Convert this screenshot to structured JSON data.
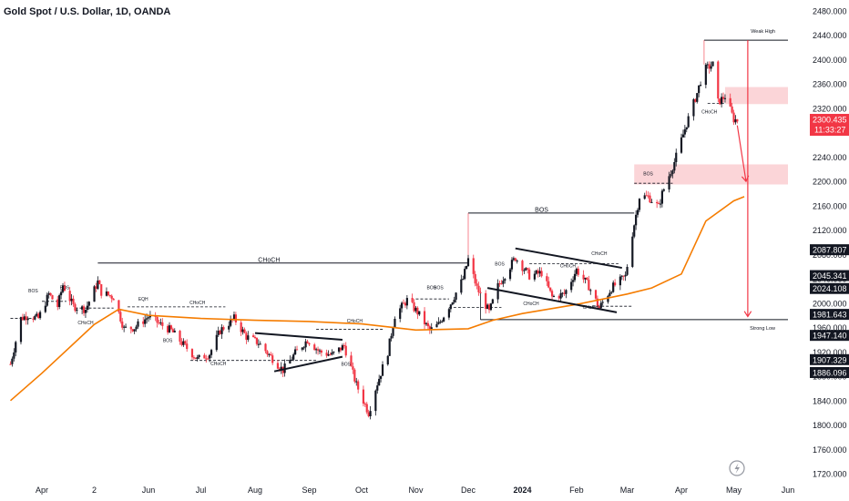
{
  "title": "Gold Spot / U.S. Dollar, 1D, OANDA",
  "colors": {
    "up": "#131722",
    "down": "#f23645",
    "ma": "#f57c00",
    "zone": "#fbd5d8",
    "arrow": "#f23645",
    "line": "#131722",
    "grid": "#ffffff",
    "badge_dark": "#131722",
    "badge_red": "#f23645"
  },
  "icon": "lightning-icon",
  "chart_data": {
    "type": "candlestick",
    "symbol": "Gold Spot / U.S. Dollar",
    "interval": "1D",
    "source": "OANDA",
    "ylim": [
      1720,
      2480
    ],
    "y_ticks": [
      1720,
      1760,
      1800,
      1840,
      1880,
      1920,
      1960,
      2000,
      2040,
      2080,
      2120,
      2160,
      2200,
      2240,
      2280,
      2320,
      2360,
      2400,
      2440,
      2480
    ],
    "y_tick_labels": [
      "1720.000",
      "1760.000",
      "1800.000",
      "1840.000",
      "1880.000",
      "1920.000",
      "1960.000",
      "2000.000",
      "2040.000",
      "2080.000",
      "2120.000",
      "2160.000",
      "2200.000",
      "2240.000",
      "2280.000",
      "2320.000",
      "2360.000",
      "2400.000",
      "2440.000",
      "2480.000"
    ],
    "x_ticks": [
      {
        "label": "Apr",
        "date": "2023-04-01"
      },
      {
        "label": "2",
        "date": "2023-05-01"
      },
      {
        "label": "Jun",
        "date": "2023-06-01"
      },
      {
        "label": "Jul",
        "date": "2023-07-01"
      },
      {
        "label": "Aug",
        "date": "2023-08-01"
      },
      {
        "label": "Sep",
        "date": "2023-09-01"
      },
      {
        "label": "Oct",
        "date": "2023-10-01"
      },
      {
        "label": "Nov",
        "date": "2023-11-01"
      },
      {
        "label": "Dec",
        "date": "2023-12-01"
      },
      {
        "label": "2024",
        "date": "2024-01-01"
      },
      {
        "label": "Feb",
        "date": "2024-02-01"
      },
      {
        "label": "Mar",
        "date": "2024-03-01"
      },
      {
        "label": "Apr",
        "date": "2024-04-01"
      },
      {
        "label": "May",
        "date": "2024-05-01"
      },
      {
        "label": "Jun",
        "date": "2024-06-01"
      }
    ],
    "close_path": [
      [
        "2023-03-14",
        1900
      ],
      [
        "2023-03-20",
        1975
      ],
      [
        "2023-03-24",
        1980
      ],
      [
        "2023-03-30",
        1975
      ],
      [
        "2023-04-05",
        2015
      ],
      [
        "2023-04-10",
        1995
      ],
      [
        "2023-04-13",
        2030
      ],
      [
        "2023-04-19",
        1995
      ],
      [
        "2023-04-26",
        1990
      ],
      [
        "2023-05-03",
        2035
      ],
      [
        "2023-05-05",
        2018
      ],
      [
        "2023-05-12",
        2010
      ],
      [
        "2023-05-18",
        1958
      ],
      [
        "2023-05-24",
        1960
      ],
      [
        "2023-06-01",
        1978
      ],
      [
        "2023-06-08",
        1965
      ],
      [
        "2023-06-14",
        1955
      ],
      [
        "2023-06-20",
        1935
      ],
      [
        "2023-06-29",
        1908
      ],
      [
        "2023-07-06",
        1917
      ],
      [
        "2023-07-12",
        1955
      ],
      [
        "2023-07-20",
        1975
      ],
      [
        "2023-07-27",
        1945
      ],
      [
        "2023-08-03",
        1935
      ],
      [
        "2023-08-10",
        1912
      ],
      [
        "2023-08-17",
        1890
      ],
      [
        "2023-08-24",
        1918
      ],
      [
        "2023-08-31",
        1940
      ],
      [
        "2023-09-07",
        1920
      ],
      [
        "2023-09-14",
        1915
      ],
      [
        "2023-09-21",
        1930
      ],
      [
        "2023-09-28",
        1866
      ],
      [
        "2023-10-05",
        1820
      ],
      [
        "2023-10-09",
        1860
      ],
      [
        "2023-10-16",
        1920
      ],
      [
        "2023-10-20",
        1980
      ],
      [
        "2023-10-27",
        2005
      ],
      [
        "2023-11-02",
        1985
      ],
      [
        "2023-11-09",
        1955
      ],
      [
        "2023-11-14",
        1965
      ],
      [
        "2023-11-21",
        2000
      ],
      [
        "2023-11-28",
        2040
      ],
      [
        "2023-12-01",
        2072
      ],
      [
        "2023-12-06",
        2025
      ],
      [
        "2023-12-13",
        1985
      ],
      [
        "2023-12-18",
        2028
      ],
      [
        "2023-12-28",
        2075
      ],
      [
        "2024-01-05",
        2045
      ],
      [
        "2024-01-12",
        2050
      ],
      [
        "2024-01-18",
        2010
      ],
      [
        "2024-01-25",
        2015
      ],
      [
        "2024-02-01",
        2055
      ],
      [
        "2024-02-08",
        2028
      ],
      [
        "2024-02-14",
        1992
      ],
      [
        "2024-02-21",
        2025
      ],
      [
        "2024-02-29",
        2044
      ],
      [
        "2024-03-04",
        2115
      ],
      [
        "2024-03-08",
        2175
      ],
      [
        "2024-03-13",
        2175
      ],
      [
        "2024-03-19",
        2158
      ],
      [
        "2024-03-21",
        2180
      ],
      [
        "2024-03-28",
        2232
      ],
      [
        "2024-04-04",
        2295
      ],
      [
        "2024-04-10",
        2345
      ],
      [
        "2024-04-12",
        2365
      ],
      [
        "2024-04-15",
        2385
      ],
      [
        "2024-04-19",
        2392
      ],
      [
        "2024-04-22",
        2330
      ],
      [
        "2024-04-26",
        2340
      ],
      [
        "2024-05-01",
        2302
      ],
      [
        "2024-05-03",
        2300.435
      ]
    ],
    "moving_average": [
      [
        "2023-03-14",
        1840
      ],
      [
        "2023-04-01",
        1885
      ],
      [
        "2023-05-01",
        1965
      ],
      [
        "2023-05-15",
        1990
      ],
      [
        "2023-06-01",
        1980
      ],
      [
        "2023-07-01",
        1975
      ],
      [
        "2023-08-01",
        1972
      ],
      [
        "2023-09-01",
        1970
      ],
      [
        "2023-10-01",
        1966
      ],
      [
        "2023-11-01",
        1956
      ],
      [
        "2023-12-01",
        1958
      ],
      [
        "2023-12-15",
        1972
      ],
      [
        "2024-01-01",
        1983
      ],
      [
        "2024-02-01",
        1998
      ],
      [
        "2024-03-01",
        2015
      ],
      [
        "2024-03-15",
        2025
      ],
      [
        "2024-04-01",
        2048
      ],
      [
        "2024-04-15",
        2135
      ],
      [
        "2024-05-01",
        2168
      ],
      [
        "2024-05-07",
        2175
      ]
    ],
    "levels": [
      {
        "label": "Weak High",
        "value": 2432,
        "from": "2024-04-14",
        "to": "2024-06-01"
      },
      {
        "label": "Strong Low",
        "value": 1973,
        "from": "2023-12-08",
        "to": "2024-06-01"
      },
      {
        "label": "BOS",
        "value": 2148,
        "from": "2023-12-01",
        "to": "2024-03-05"
      },
      {
        "label": "CHoCH",
        "value": 2066,
        "from": "2023-05-03",
        "to": "2023-12-01"
      }
    ],
    "zones": [
      {
        "from": "2024-04-26",
        "to": "2024-06-01",
        "low": 2327,
        "high": 2355
      },
      {
        "from": "2024-03-05",
        "to": "2024-06-01",
        "low": 2195,
        "high": 2228
      }
    ],
    "trendlines": [
      {
        "from": [
          "2023-08-12",
          1888
        ],
        "to": [
          "2023-09-20",
          1912
        ]
      },
      {
        "from": [
          "2023-08-01",
          1951
        ],
        "to": [
          "2023-09-20",
          1940
        ]
      },
      {
        "from": [
          "2023-12-28",
          2090
        ],
        "to": [
          "2024-02-27",
          2058
        ]
      },
      {
        "from": [
          "2023-12-12",
          2025
        ],
        "to": [
          "2024-02-24",
          1985
        ]
      }
    ],
    "markers": [
      {
        "label": "BOS",
        "date": "2023-03-27",
        "value": 2018
      },
      {
        "label": "BOS",
        "date": "2023-04-14",
        "value": 2023
      },
      {
        "label": "EQH",
        "date": "2023-05-29",
        "value": 2004
      },
      {
        "label": "CHoCH",
        "date": "2023-04-26",
        "value": 1965
      },
      {
        "label": "CHoCH",
        "date": "2023-06-29",
        "value": 1998
      },
      {
        "label": "BOS",
        "date": "2023-06-12",
        "value": 1936
      },
      {
        "label": "CHoCH",
        "date": "2023-07-11",
        "value": 1898
      },
      {
        "label": "CHoCH",
        "date": "2023-09-27",
        "value": 1968
      },
      {
        "label": "BOS",
        "date": "2023-09-22",
        "value": 1897
      },
      {
        "label": "BOS",
        "date": "2023-11-10",
        "value": 2023
      },
      {
        "label": "BOS",
        "date": "2023-11-14",
        "value": 2023
      },
      {
        "label": "BOS",
        "date": "2023-12-19",
        "value": 2062
      },
      {
        "label": "CHoCH",
        "date": "2024-01-06",
        "value": 1997
      },
      {
        "label": "CHoCH",
        "date": "2024-01-27",
        "value": 2059
      },
      {
        "label": "CHoCH",
        "date": "2024-02-14",
        "value": 2079
      },
      {
        "label": "CHoCH",
        "date": "2024-02-09",
        "value": 1991
      },
      {
        "label": "BOS",
        "date": "2024-03-13",
        "value": 2210
      },
      {
        "label": "CHoCH",
        "date": "2024-04-17",
        "value": 2312
      }
    ],
    "level_labels": [
      {
        "text": "BOS",
        "date": "2024-01-12",
        "value": 2156
      },
      {
        "text": "CHoCH",
        "date": "2023-08-09",
        "value": 2074
      }
    ],
    "arrows": [
      {
        "from": [
          "2024-05-03",
          2292
        ],
        "to": [
          "2024-05-08",
          2200
        ]
      },
      {
        "from": [
          "2024-05-09",
          2432
        ],
        "to": [
          "2024-05-09",
          1978
        ]
      }
    ],
    "price_labels": [
      {
        "text": "2300.435",
        "sub": "11:33:27",
        "value": 2300.435,
        "style": "red"
      },
      {
        "text": "2087.807",
        "value": 2087.807,
        "style": "dark"
      },
      {
        "text": "2045.341",
        "value": 2045.341,
        "style": "dark"
      },
      {
        "text": "2024.108",
        "value": 2024.108,
        "style": "dark"
      },
      {
        "text": "1981.643",
        "value": 1981.643,
        "style": "dark"
      },
      {
        "text": "1947.140",
        "value": 1947.14,
        "style": "dark"
      },
      {
        "text": "1907.329",
        "value": 1907.329,
        "style": "dark"
      },
      {
        "text": "1886.096",
        "value": 1886.096,
        "style": "dark"
      }
    ]
  }
}
